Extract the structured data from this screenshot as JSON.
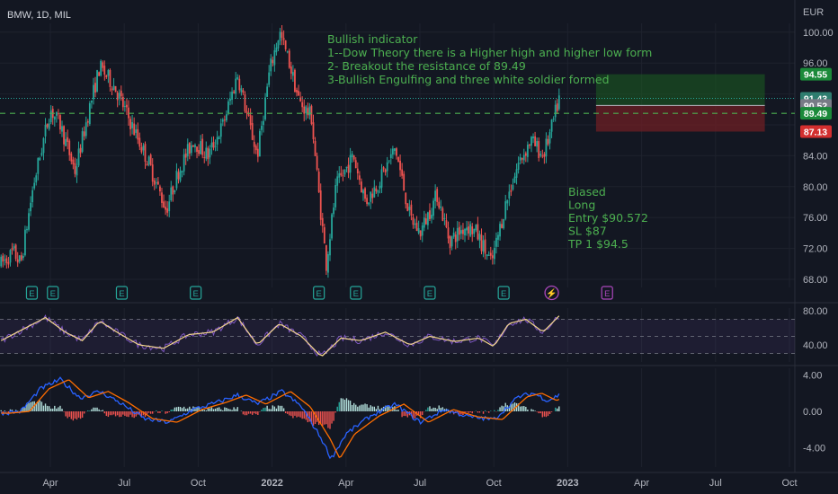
{
  "symbol_label": "BMW, 1D, MIL",
  "currency": "EUR",
  "colors": {
    "background": "#131722",
    "grid": "#1e222d",
    "up": "#26a69a",
    "down": "#ef5350",
    "note": "#4caf50",
    "rsi_line": "#7e57c2",
    "rsi_ma": "#f5d78e",
    "macd_line": "#2962ff",
    "signal_line": "#ff6d00",
    "target_zone": "#1b5e20",
    "stop_zone": "#6d1f24",
    "dashed_level": "#4caf50"
  },
  "annotations": {
    "indicator_note": [
      "Bullish indicator",
      "1--Dow Theory there is a Higher high and higher low form",
      "2- Breakout the resistance of 89.49",
      "3-Bullish Engulfing and three white soldier formed"
    ],
    "trade_note": [
      "Biased",
      "Long",
      "Entry $90.572",
      "SL $87",
      "TP 1 $94.5"
    ]
  },
  "price_badges": [
    {
      "label": "94.55",
      "value": 94.55,
      "bg": "#1b8a3a",
      "fg": "#ffffff"
    },
    {
      "label": "91.43",
      "value": 91.43,
      "bg": "#2e7d6f",
      "fg": "#ffffff"
    },
    {
      "label": "90.52",
      "value": 90.52,
      "bg": "#787b86",
      "fg": "#ffffff"
    },
    {
      "label": "89.49",
      "value": 89.49,
      "bg": "#1b8a3a",
      "fg": "#ffffff"
    },
    {
      "label": "87.13",
      "value": 87.13,
      "bg": "#d32f2f",
      "fg": "#ffffff"
    }
  ],
  "event_markers": [
    {
      "icon": "E",
      "type": "earnings",
      "month_pos": 1.25
    },
    {
      "icon": "E",
      "type": "earnings",
      "month_pos": 2.1
    },
    {
      "icon": "E",
      "type": "earnings",
      "month_pos": 4.9
    },
    {
      "icon": "E",
      "type": "earnings",
      "month_pos": 7.9
    },
    {
      "icon": "E",
      "type": "earnings",
      "month_pos": 12.9
    },
    {
      "icon": "E",
      "type": "earnings",
      "month_pos": 14.4
    },
    {
      "icon": "E",
      "type": "earnings",
      "month_pos": 17.4
    },
    {
      "icon": "E",
      "type": "earnings",
      "month_pos": 20.4
    },
    {
      "icon": "⚡",
      "type": "flash",
      "month_pos": 22.35
    },
    {
      "icon": "E",
      "type": "future-earnings",
      "month_pos": 24.6
    }
  ],
  "chart_data": {
    "type": "candlestick",
    "symbol": "BMW, 1D, MIL",
    "x_labels": [
      "Apr",
      "Jul",
      "Oct",
      "2022",
      "Apr",
      "Jul",
      "Oct",
      "2023",
      "Apr",
      "Jul",
      "Oct"
    ],
    "x_label_month_pos": [
      2,
      5,
      8,
      11,
      14,
      17,
      20,
      23,
      26,
      29,
      32
    ],
    "y_ticks": [
      68.0,
      72.0,
      76.0,
      80.0,
      84.0,
      88.0,
      92.0,
      96.0,
      100.0
    ],
    "y_tick_labels": [
      "68.00",
      "72.00",
      "76.00",
      "80.00",
      "84.00",
      "",
      "",
      "96.00",
      "100.00"
    ],
    "ylim": [
      66.5,
      102.5
    ],
    "price_path": [
      {
        "m": 0.0,
        "p": 70.0
      },
      {
        "m": 0.5,
        "p": 71.5
      },
      {
        "m": 0.8,
        "p": 70.0
      },
      {
        "m": 1.3,
        "p": 80.0
      },
      {
        "m": 2.0,
        "p": 90.0
      },
      {
        "m": 2.4,
        "p": 88.0
      },
      {
        "m": 3.0,
        "p": 82.0
      },
      {
        "m": 3.5,
        "p": 89.0
      },
      {
        "m": 4.0,
        "p": 95.5
      },
      {
        "m": 4.6,
        "p": 93.0
      },
      {
        "m": 5.3,
        "p": 88.0
      },
      {
        "m": 6.0,
        "p": 83.0
      },
      {
        "m": 6.7,
        "p": 77.0
      },
      {
        "m": 7.2,
        "p": 82.0
      },
      {
        "m": 7.8,
        "p": 86.0
      },
      {
        "m": 8.4,
        "p": 84.0
      },
      {
        "m": 9.0,
        "p": 88.0
      },
      {
        "m": 9.6,
        "p": 94.5
      },
      {
        "m": 10.0,
        "p": 89.0
      },
      {
        "m": 10.4,
        "p": 84.0
      },
      {
        "m": 10.9,
        "p": 95.0
      },
      {
        "m": 11.3,
        "p": 100.0
      },
      {
        "m": 11.7,
        "p": 96.0
      },
      {
        "m": 12.1,
        "p": 91.0
      },
      {
        "m": 12.6,
        "p": 89.0
      },
      {
        "m": 12.9,
        "p": 79.0
      },
      {
        "m": 13.2,
        "p": 70.0
      },
      {
        "m": 13.6,
        "p": 80.0
      },
      {
        "m": 14.3,
        "p": 84.0
      },
      {
        "m": 14.8,
        "p": 78.0
      },
      {
        "m": 15.4,
        "p": 81.0
      },
      {
        "m": 16.0,
        "p": 85.0
      },
      {
        "m": 16.6,
        "p": 76.0
      },
      {
        "m": 17.0,
        "p": 74.0
      },
      {
        "m": 17.7,
        "p": 79.0
      },
      {
        "m": 18.2,
        "p": 73.0
      },
      {
        "m": 18.9,
        "p": 75.0
      },
      {
        "m": 19.3,
        "p": 74.0
      },
      {
        "m": 19.9,
        "p": 70.0
      },
      {
        "m": 20.5,
        "p": 78.0
      },
      {
        "m": 21.0,
        "p": 83.0
      },
      {
        "m": 21.5,
        "p": 86.0
      },
      {
        "m": 22.0,
        "p": 84.0
      },
      {
        "m": 22.3,
        "p": 87.0
      },
      {
        "m": 22.65,
        "p": 91.4
      }
    ],
    "rsi": {
      "y_ticks": [
        80.0,
        40.0
      ],
      "y_tick_labels": [
        "80.00",
        "40.00"
      ],
      "ylim": [
        20,
        95
      ],
      "band_upper": 70,
      "band_lower": 30,
      "path": [
        {
          "m": 0.0,
          "v": 45
        },
        {
          "m": 1.0,
          "v": 60
        },
        {
          "m": 1.8,
          "v": 72
        },
        {
          "m": 2.6,
          "v": 55
        },
        {
          "m": 3.3,
          "v": 45
        },
        {
          "m": 4.0,
          "v": 68
        },
        {
          "m": 4.7,
          "v": 55
        },
        {
          "m": 5.6,
          "v": 40
        },
        {
          "m": 6.6,
          "v": 36
        },
        {
          "m": 7.6,
          "v": 52
        },
        {
          "m": 8.6,
          "v": 55
        },
        {
          "m": 9.6,
          "v": 72
        },
        {
          "m": 10.4,
          "v": 40
        },
        {
          "m": 11.3,
          "v": 65
        },
        {
          "m": 12.2,
          "v": 50
        },
        {
          "m": 13.0,
          "v": 26
        },
        {
          "m": 13.8,
          "v": 48
        },
        {
          "m": 14.6,
          "v": 45
        },
        {
          "m": 15.6,
          "v": 55
        },
        {
          "m": 16.6,
          "v": 40
        },
        {
          "m": 17.4,
          "v": 50
        },
        {
          "m": 18.4,
          "v": 44
        },
        {
          "m": 19.4,
          "v": 48
        },
        {
          "m": 20.0,
          "v": 38
        },
        {
          "m": 20.6,
          "v": 65
        },
        {
          "m": 21.3,
          "v": 70
        },
        {
          "m": 22.0,
          "v": 55
        },
        {
          "m": 22.65,
          "v": 74
        }
      ]
    },
    "macd": {
      "y_ticks": [
        4.0,
        0.0,
        -4.0
      ],
      "y_tick_labels": [
        "4.00",
        "0.00",
        "-4.00"
      ],
      "ylim": [
        -6.5,
        5.0
      ],
      "path": [
        {
          "m": 0.0,
          "v": -0.2
        },
        {
          "m": 0.8,
          "v": 0.0
        },
        {
          "m": 1.6,
          "v": 2.5
        },
        {
          "m": 2.4,
          "v": 3.5
        },
        {
          "m": 3.2,
          "v": 1.5
        },
        {
          "m": 4.0,
          "v": 2.2
        },
        {
          "m": 4.8,
          "v": 1.0
        },
        {
          "m": 5.8,
          "v": -0.8
        },
        {
          "m": 6.8,
          "v": -1.2
        },
        {
          "m": 7.8,
          "v": 0.2
        },
        {
          "m": 8.8,
          "v": 1.0
        },
        {
          "m": 9.6,
          "v": 1.8
        },
        {
          "m": 10.4,
          "v": 0.8
        },
        {
          "m": 11.4,
          "v": 2.2
        },
        {
          "m": 12.2,
          "v": 0.5
        },
        {
          "m": 13.0,
          "v": -3.0
        },
        {
          "m": 13.4,
          "v": -5.2
        },
        {
          "m": 14.0,
          "v": -2.5
        },
        {
          "m": 15.0,
          "v": -0.5
        },
        {
          "m": 16.0,
          "v": 0.8
        },
        {
          "m": 17.0,
          "v": -1.2
        },
        {
          "m": 18.0,
          "v": 0.2
        },
        {
          "m": 19.0,
          "v": -0.6
        },
        {
          "m": 20.0,
          "v": -0.9
        },
        {
          "m": 21.0,
          "v": 1.6
        },
        {
          "m": 21.6,
          "v": 2.0
        },
        {
          "m": 22.2,
          "v": 1.2
        },
        {
          "m": 22.65,
          "v": 1.8
        }
      ]
    }
  }
}
